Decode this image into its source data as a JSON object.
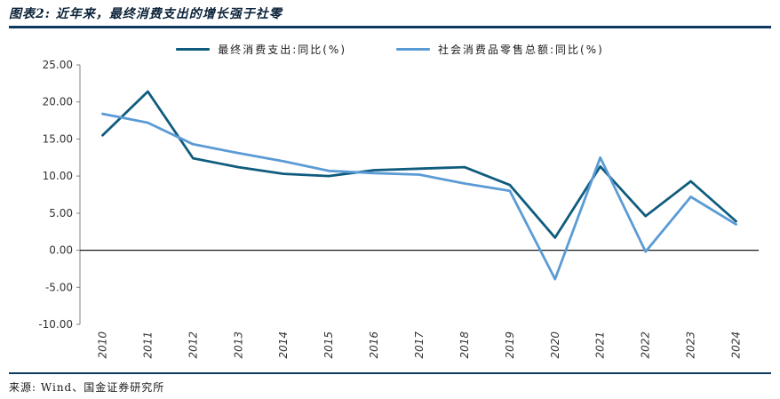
{
  "header": {
    "title": "图表2: 近年来，最终消费支出的增长强于社零"
  },
  "colors": {
    "rule": "#0f3a5f",
    "axis_text": "#333333",
    "zero_line": "#1a1a1a",
    "axis_line": "#808080"
  },
  "chart_data": {
    "type": "line",
    "title": "近年来，最终消费支出的增长强于社零",
    "categories": [
      "2010",
      "2011",
      "2012",
      "2013",
      "2014",
      "2015",
      "2016",
      "2017",
      "2018",
      "2019",
      "2020",
      "2021",
      "2022",
      "2023",
      "2024"
    ],
    "series": [
      {
        "name": "最终消费支出:同比(%)",
        "color": "#0f5c7e",
        "values": [
          15.5,
          21.4,
          12.4,
          11.2,
          10.3,
          10.0,
          10.8,
          11.0,
          11.2,
          8.8,
          1.7,
          11.3,
          4.6,
          9.3,
          3.9
        ]
      },
      {
        "name": "社会消费品零售总额:同比(%)",
        "color": "#5b9bd5",
        "values": [
          18.4,
          17.2,
          14.3,
          13.1,
          12.0,
          10.7,
          10.4,
          10.2,
          9.0,
          8.0,
          -3.9,
          12.5,
          -0.2,
          7.2,
          3.5
        ]
      }
    ],
    "ylim": [
      -10,
      25
    ],
    "ytick_labels": [
      "25.00",
      "20.00",
      "15.00",
      "10.00",
      "5.00",
      "0.00",
      "-5.00",
      "-10.00"
    ],
    "grid": false,
    "legend_position": "top",
    "xlabel": "",
    "ylabel": ""
  },
  "footer": {
    "source": "来源: Wind、国金证券研究所"
  }
}
